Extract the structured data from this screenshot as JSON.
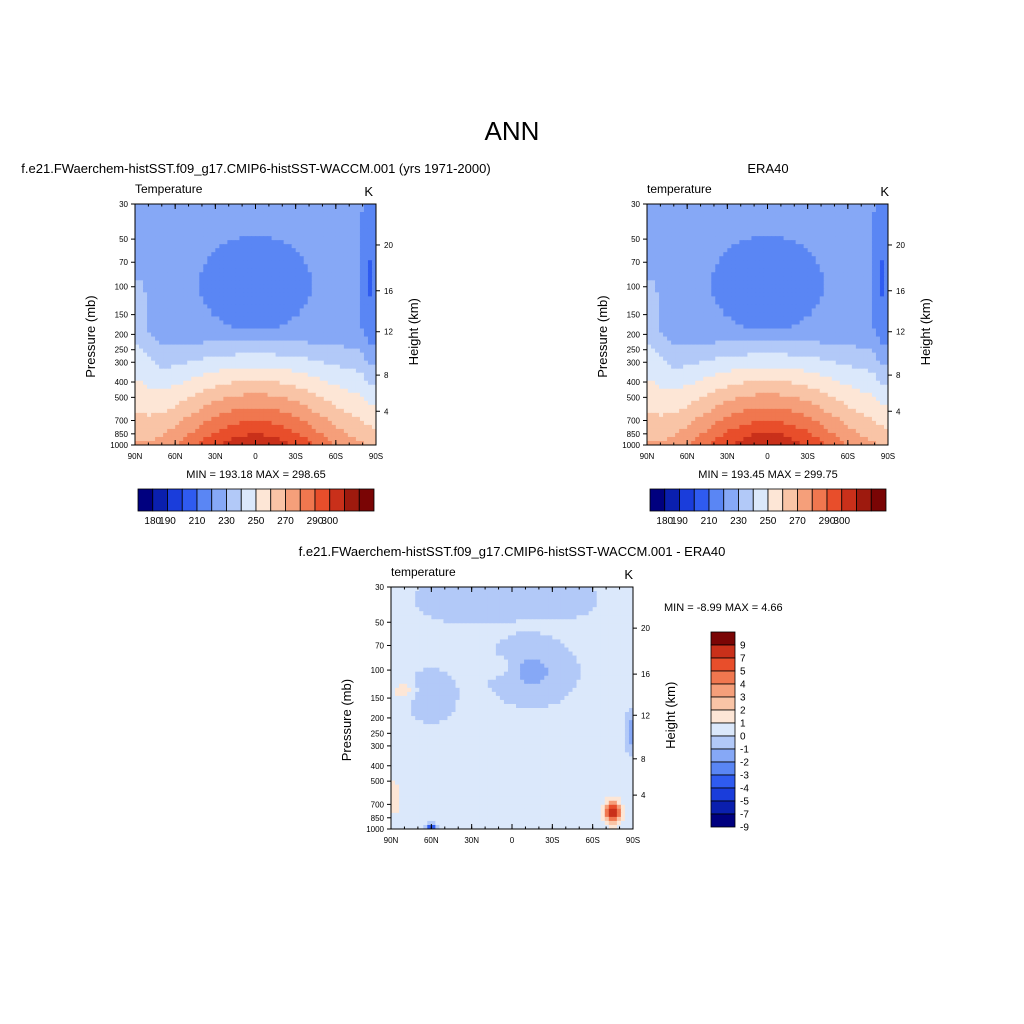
{
  "figure_title": "ANN",
  "palettes": {
    "abs": [
      "#00007f",
      "#0a1fae",
      "#1a3ddb",
      "#2f5bf0",
      "#5a86f4",
      "#86a8f6",
      "#b2c9f8",
      "#dbe8fb",
      "#fde6d6",
      "#f9c4a6",
      "#f59f7a",
      "#f0774f",
      "#e84e2b",
      "#c9301a",
      "#9e1a0e",
      "#7a0505"
    ],
    "diff": [
      "#00007f",
      "#0a1fae",
      "#1a3ddb",
      "#2f5bf0",
      "#5a86f4",
      "#86a8f6",
      "#b2c9f8",
      "#dbe8fb",
      "#fde6d6",
      "#f9c4a6",
      "#f59f7a",
      "#f0774f",
      "#e84e2b",
      "#c9301a",
      "#7a0505"
    ]
  },
  "panels": [
    {
      "title": "f.e21.FWaerchem-histSST.f09_g17.CMIP6-histSST-WACCM.001 (yrs 1971-2000)",
      "var_label": "Temperature",
      "units": "K",
      "min_max": "MIN = 193.18  MAX = 298.65"
    },
    {
      "title": "ERA40",
      "var_label": "temperature",
      "units": "K",
      "min_max": "MIN = 193.45  MAX = 299.75"
    },
    {
      "title": "f.e21.FWaerchem-histSST.f09_g17.CMIP6-histSST-WACCM.001 - ERA40",
      "var_label": "temperature",
      "units": "K",
      "min_max": "MIN =  -8.99  MAX =   4.66"
    }
  ],
  "axes": {
    "ylabel": "Pressure (mb)",
    "y2label": "Height (km)",
    "pressure_ticks": [
      "30",
      "50",
      "70",
      "100",
      "150",
      "200",
      "250",
      "300",
      "400",
      "500",
      "700",
      "850",
      "1000"
    ],
    "lat_ticks": [
      "90N",
      "60N",
      "30N",
      "0",
      "30S",
      "60S",
      "90S"
    ],
    "height_ticks": [
      "20",
      "16",
      "12",
      "8",
      "4"
    ]
  },
  "colorbars": {
    "abs_labels": [
      "180",
      "190",
      "210",
      "230",
      "250",
      "270",
      "290",
      "300"
    ],
    "diff_labels": [
      "9",
      "7",
      "5",
      "4",
      "3",
      "2",
      "1",
      "0",
      "-1",
      "-2",
      "-3",
      "-4",
      "-5",
      "-7",
      "-9"
    ]
  },
  "chart_data": [
    {
      "type": "heatmap",
      "title": "f.e21.FWaerchem-histSST.f09_g17.CMIP6-histSST-WACCM.001 (yrs 1971-2000)",
      "xlabel": "",
      "ylabel": "Pressure (mb)",
      "y2label": "Height (km)",
      "x": [
        "90N",
        "60N",
        "30N",
        "0",
        "30S",
        "60S",
        "90S"
      ],
      "y": [
        30,
        50,
        70,
        100,
        150,
        200,
        250,
        300,
        400,
        500,
        700,
        850,
        1000
      ],
      "y_scale": "log",
      "units": "K",
      "min": 193.18,
      "max": 298.65,
      "levels": [
        180,
        190,
        200,
        210,
        220,
        230,
        240,
        250,
        260,
        270,
        280,
        290,
        300
      ]
    },
    {
      "type": "heatmap",
      "title": "ERA40",
      "xlabel": "",
      "ylabel": "Pressure (mb)",
      "y2label": "Height (km)",
      "x": [
        "90N",
        "60N",
        "30N",
        "0",
        "30S",
        "60S",
        "90S"
      ],
      "y": [
        30,
        50,
        70,
        100,
        150,
        200,
        250,
        300,
        400,
        500,
        700,
        850,
        1000
      ],
      "y_scale": "log",
      "units": "K",
      "min": 193.45,
      "max": 299.75,
      "levels": [
        180,
        190,
        200,
        210,
        220,
        230,
        240,
        250,
        260,
        270,
        280,
        290,
        300
      ]
    },
    {
      "type": "heatmap",
      "title": "f.e21.FWaerchem-histSST.f09_g17.CMIP6-histSST-WACCM.001 - ERA40",
      "xlabel": "",
      "ylabel": "Pressure (mb)",
      "y2label": "Height (km)",
      "x": [
        "90N",
        "60N",
        "30N",
        "0",
        "30S",
        "60S",
        "90S"
      ],
      "y": [
        30,
        50,
        70,
        100,
        150,
        200,
        250,
        300,
        400,
        500,
        700,
        850,
        1000
      ],
      "y_scale": "log",
      "units": "K",
      "min": -8.99,
      "max": 4.66,
      "levels": [
        -9,
        -7,
        -5,
        -4,
        -3,
        -2,
        -1,
        0,
        1,
        2,
        3,
        4,
        5,
        7,
        9
      ]
    }
  ]
}
